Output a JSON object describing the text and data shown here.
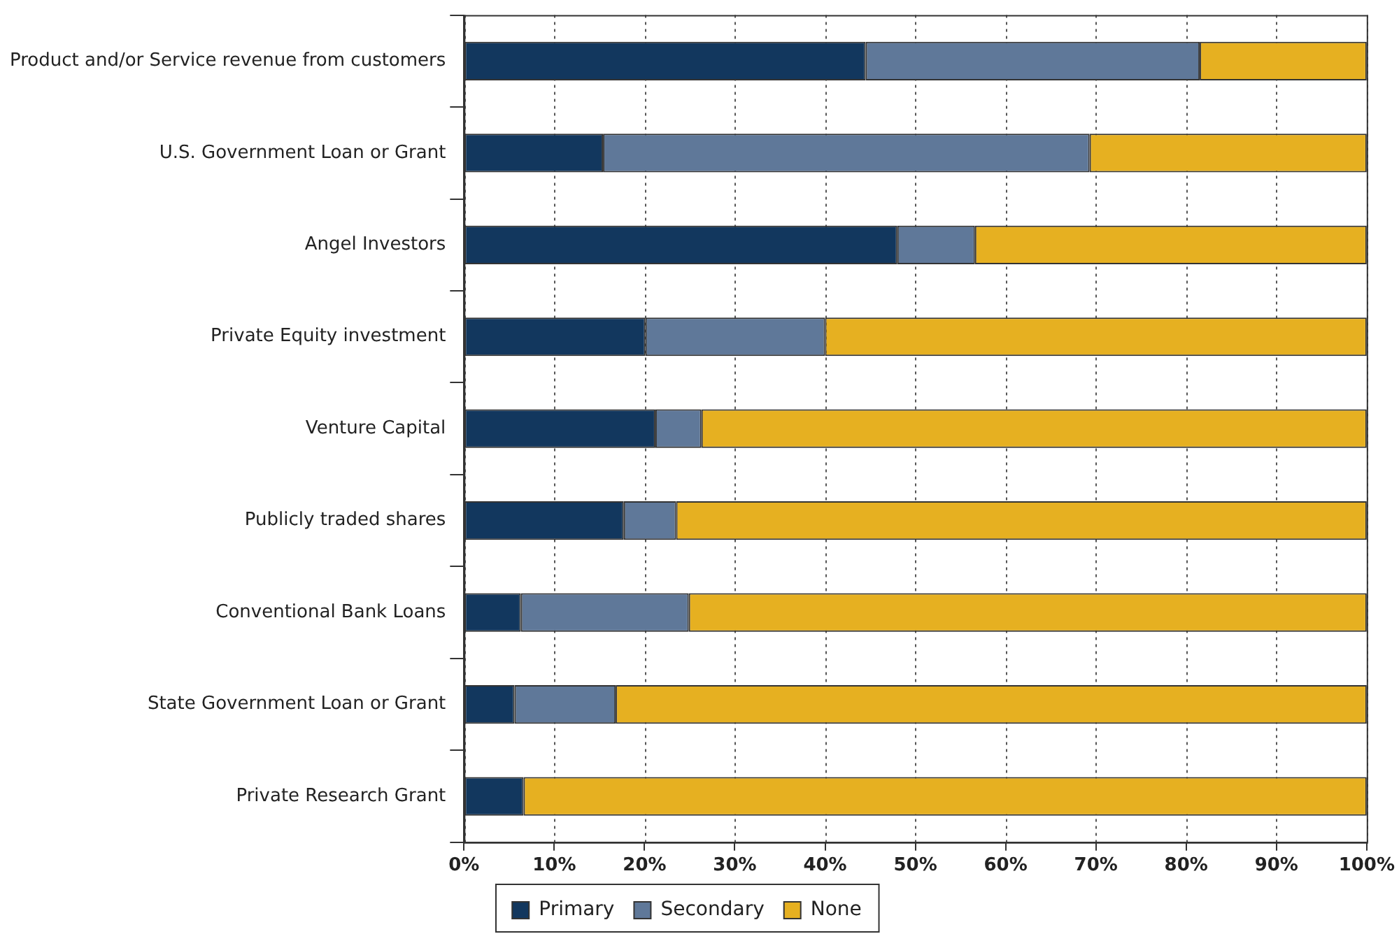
{
  "chart_data": {
    "type": "bar",
    "orientation": "horizontal",
    "stacked": true,
    "categories": [
      "Product and/or Service revenue from customers",
      "U.S. Government Loan or Grant",
      "Angel Investors",
      "Private Equity investment",
      "Venture Capital",
      "Publicly traded shares",
      "Conventional Bank Loans",
      "State Government Loan or Grant",
      "Private Research Grant"
    ],
    "series": [
      {
        "name": "Primary",
        "color": "#12375e",
        "values": [
          44.5,
          15.4,
          48.0,
          20.1,
          21.2,
          17.7,
          6.3,
          5.6,
          6.6
        ]
      },
      {
        "name": "Secondary",
        "color": "#5f7899",
        "values": [
          37.0,
          53.9,
          8.6,
          19.9,
          5.1,
          5.8,
          18.6,
          11.2,
          0
        ]
      },
      {
        "name": "None",
        "color": "#e6b021",
        "values": [
          18.5,
          30.7,
          43.4,
          60.0,
          73.7,
          76.5,
          75.1,
          83.2,
          93.4
        ]
      }
    ],
    "xlim": [
      0,
      100
    ],
    "xticks": [
      {
        "value": 0,
        "label": "0%"
      },
      {
        "value": 10,
        "label": "10%"
      },
      {
        "value": 20,
        "label": "20%"
      },
      {
        "value": 30,
        "label": "30%"
      },
      {
        "value": 40,
        "label": "40%"
      },
      {
        "value": 50,
        "label": "50%"
      },
      {
        "value": 60,
        "label": "60%"
      },
      {
        "value": 70,
        "label": "70%"
      },
      {
        "value": 80,
        "label": "80%"
      },
      {
        "value": 90,
        "label": "90%"
      },
      {
        "value": 100,
        "label": "100%"
      }
    ],
    "grid": "x",
    "legend": "bottom"
  }
}
